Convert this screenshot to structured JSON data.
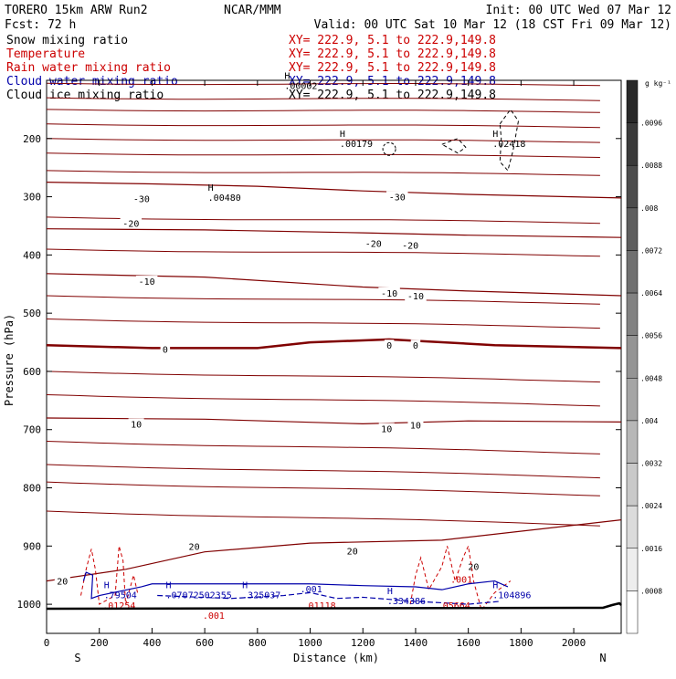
{
  "header": {
    "model": "TORERO  15km ARW   Run2",
    "org": "NCAR/MMM",
    "init": "Init: 00 UTC Wed 07 Mar 12",
    "fcst": "Fcst:   72 h",
    "valid": "Valid: 00 UTC Sat 10 Mar 12 (18 CST Fri 09 Mar 12)"
  },
  "fields": [
    {
      "name": "Snow mixing ratio",
      "xy": "XY= 222.9,  5.1 to 222.9,149.8",
      "name_color": "#000000",
      "xy_color": "#cc0000"
    },
    {
      "name": "Temperature",
      "xy": "XY= 222.9,  5.1 to 222.9,149.8",
      "name_color": "#cc0000",
      "xy_color": "#cc0000"
    },
    {
      "name": "Rain water mixing ratio",
      "xy": "XY= 222.9,  5.1 to 222.9,149.8",
      "name_color": "#cc0000",
      "xy_color": "#cc0000"
    },
    {
      "name": "Cloud water mixing ratio",
      "xy": "XY= 222.9,  5.1 to 222.9,149.8",
      "name_color": "#0000aa",
      "xy_color": "#0000aa"
    },
    {
      "name": "Cloud ice mixing ratio",
      "xy": "XY= 222.9,  5.1 to 222.9,149.8",
      "name_color": "#000000",
      "xy_color": "#000000"
    }
  ],
  "chart_data": {
    "type": "cross-section contour",
    "xlabel": "Distance (km)",
    "ylabel": "Pressure (hPa)",
    "x_ticks": [
      "0",
      "200",
      "400",
      "600",
      "800",
      "1000",
      "1200",
      "1400",
      "1600",
      "1800",
      "2000"
    ],
    "xlim": [
      0,
      2180
    ],
    "y_ticks": [
      "200",
      "300",
      "400",
      "500",
      "600",
      "700",
      "800",
      "900",
      "1000"
    ],
    "ylim": [
      100,
      1050
    ],
    "y_scale": "linear",
    "endpoints": {
      "left": "S",
      "right": "N"
    },
    "colorbar": {
      "unit": "g kg⁻¹",
      "labels": [
        ".0096",
        ".0088",
        ".008",
        ".0072",
        ".0064",
        ".0056",
        ".0048",
        ".004",
        ".0032",
        ".0024",
        ".0016",
        ".0008"
      ]
    },
    "temperature_isotherms": [
      {
        "value": -30,
        "label": "-30",
        "points": [
          [
            0,
            275
          ],
          [
            400,
            278
          ],
          [
            800,
            282
          ],
          [
            1200,
            290
          ],
          [
            1600,
            296
          ],
          [
            2180,
            302
          ]
        ],
        "bold": false,
        "labels_at": [
          [
            360,
            303
          ],
          [
            1330,
            300
          ]
        ]
      },
      {
        "value": -20,
        "label": "-20",
        "points": [
          [
            0,
            355
          ],
          [
            600,
            357
          ],
          [
            1200,
            362
          ],
          [
            1600,
            366
          ],
          [
            2180,
            370
          ]
        ],
        "bold": false,
        "labels_at": [
          [
            320,
            345
          ],
          [
            1240,
            380
          ],
          [
            1380,
            383
          ]
        ]
      },
      {
        "value": -10,
        "label": "-10",
        "points": [
          [
            0,
            432
          ],
          [
            600,
            438
          ],
          [
            1200,
            455
          ],
          [
            1600,
            462
          ],
          [
            2180,
            470
          ]
        ],
        "bold": false,
        "labels_at": [
          [
            380,
            445
          ],
          [
            1300,
            465
          ],
          [
            1400,
            470
          ]
        ]
      },
      {
        "value": 0,
        "label": "0",
        "points": [
          [
            0,
            555
          ],
          [
            400,
            560
          ],
          [
            800,
            560
          ],
          [
            1000,
            550
          ],
          [
            1300,
            545
          ],
          [
            1700,
            555
          ],
          [
            2180,
            560
          ]
        ],
        "bold": true,
        "labels_at": [
          [
            450,
            562
          ],
          [
            1300,
            555
          ],
          [
            1400,
            555
          ]
        ]
      },
      {
        "value": 10,
        "label": "10",
        "points": [
          [
            0,
            680
          ],
          [
            600,
            682
          ],
          [
            1200,
            690
          ],
          [
            1600,
            685
          ],
          [
            2180,
            687
          ]
        ],
        "bold": false,
        "labels_at": [
          [
            340,
            690
          ],
          [
            1290,
            698
          ],
          [
            1400,
            692
          ]
        ]
      },
      {
        "value": 20,
        "label": "20",
        "points": [
          [
            0,
            960
          ],
          [
            300,
            940
          ],
          [
            600,
            910
          ],
          [
            1000,
            895
          ],
          [
            1500,
            890
          ],
          [
            2180,
            855
          ]
        ],
        "bold": false,
        "labels_at": [
          [
            60,
            960
          ],
          [
            560,
            900
          ],
          [
            1160,
            908
          ],
          [
            1620,
            935
          ]
        ]
      }
    ],
    "isobar_like_contours_p": [
      105,
      130,
      150,
      175,
      200,
      225,
      255,
      335,
      390,
      470,
      510,
      600,
      640,
      720,
      760,
      790,
      840
    ],
    "maxima_labels": [
      {
        "label": "H",
        "value": ".00002",
        "x": 930,
        "y": 110,
        "color": "#000000"
      },
      {
        "label": "H",
        "value": ".00179",
        "x": 1140,
        "y": 210,
        "color": "#000000"
      },
      {
        "label": "H",
        "value": ".02418",
        "x": 1720,
        "y": 210,
        "color": "#000000"
      },
      {
        "label": "H",
        "value": ".00480",
        "x": 640,
        "y": 302,
        "color": "#000000"
      },
      {
        "label": "H",
        "value": ".79504",
        "x": 245,
        "y": 985,
        "color": "#0000aa"
      },
      {
        "label": "H",
        "value": ".07072502355",
        "x": 480,
        "y": 985,
        "color": "#0000aa"
      },
      {
        "label": "H",
        "value": ".325037",
        "x": 770,
        "y": 985,
        "color": "#0000aa"
      },
      {
        "label": "H",
        "value": ".334386",
        "x": 1320,
        "y": 995,
        "color": "#0000aa"
      },
      {
        "label": "H",
        "value": ".104896",
        "x": 1720,
        "y": 985,
        "color": "#0000aa"
      },
      {
        "label": "",
        "value": ".01254",
        "x": 240,
        "y": 1003,
        "color": "#cc0000"
      },
      {
        "label": "",
        "value": ".01118",
        "x": 1000,
        "y": 1003,
        "color": "#cc0000"
      },
      {
        "label": "",
        "value": ".05664",
        "x": 1510,
        "y": 1003,
        "color": "#cc0000"
      },
      {
        "label": "",
        "value": ".001",
        "x": 620,
        "y": 1020,
        "color": "#cc0000"
      },
      {
        "label": "",
        "value": ".001",
        "x": 1560,
        "y": 958,
        "color": "#cc0000"
      },
      {
        "label": "",
        "value": ".001",
        "x": 990,
        "y": 975,
        "color": "#0000aa"
      }
    ]
  }
}
